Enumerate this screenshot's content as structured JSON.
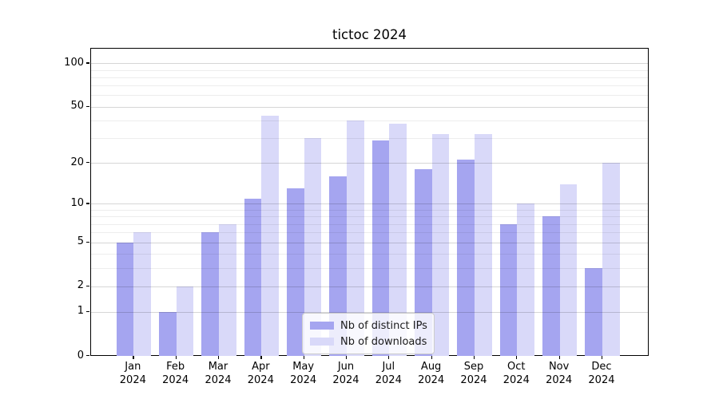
{
  "title": "tictoc 2024",
  "colors": {
    "ips_bar": "#a5a5f0",
    "downloads_bar": "#d9d9f9",
    "grid_major": "rgba(0,0,0,0.16)",
    "grid_minor": "rgba(0,0,0,0.07)",
    "spine": "#000000"
  },
  "legend": {
    "items": [
      {
        "label": "Nb of distinct IPs",
        "color": "#a5a5f0"
      },
      {
        "label": "Nb of downloads",
        "color": "#d9d9f9"
      }
    ]
  },
  "y_axis": {
    "scale": "log1p",
    "tick_labels": [
      "0",
      "1",
      "2",
      "5",
      "10",
      "20",
      "50",
      "100"
    ],
    "tick_values": [
      0,
      1,
      2,
      5,
      10,
      20,
      50,
      100
    ],
    "minor_values": [
      3,
      4,
      6,
      7,
      8,
      9,
      30,
      40,
      60,
      70,
      80,
      90
    ]
  },
  "x_axis": {
    "categories": [
      {
        "month": "Jan",
        "year": "2024"
      },
      {
        "month": "Feb",
        "year": "2024"
      },
      {
        "month": "Mar",
        "year": "2024"
      },
      {
        "month": "Apr",
        "year": "2024"
      },
      {
        "month": "May",
        "year": "2024"
      },
      {
        "month": "Jun",
        "year": "2024"
      },
      {
        "month": "Jul",
        "year": "2024"
      },
      {
        "month": "Aug",
        "year": "2024"
      },
      {
        "month": "Sep",
        "year": "2024"
      },
      {
        "month": "Oct",
        "year": "2024"
      },
      {
        "month": "Nov",
        "year": "2024"
      },
      {
        "month": "Dec",
        "year": "2024"
      }
    ]
  },
  "chart_data": {
    "type": "bar",
    "title": "tictoc 2024",
    "categories": [
      "Jan 2024",
      "Feb 2024",
      "Mar 2024",
      "Apr 2024",
      "May 2024",
      "Jun 2024",
      "Jul 2024",
      "Aug 2024",
      "Sep 2024",
      "Oct 2024",
      "Nov 2024",
      "Dec 2024"
    ],
    "series": [
      {
        "name": "Nb of distinct IPs",
        "color": "#a5a5f0",
        "values": [
          5,
          1,
          6,
          11,
          13,
          16,
          29,
          18,
          21,
          7,
          8,
          3
        ]
      },
      {
        "name": "Nb of downloads",
        "color": "#d9d9f9",
        "values": [
          6,
          2,
          7,
          43,
          30,
          40,
          38,
          32,
          32,
          10,
          14,
          20
        ]
      }
    ],
    "xlabel": "",
    "ylabel": "",
    "yscale": "log1p",
    "yticks": [
      0,
      1,
      2,
      5,
      10,
      20,
      50,
      100
    ],
    "ylim": [
      0,
      126
    ],
    "grid": true,
    "legend_position": "inside lower center-right"
  }
}
